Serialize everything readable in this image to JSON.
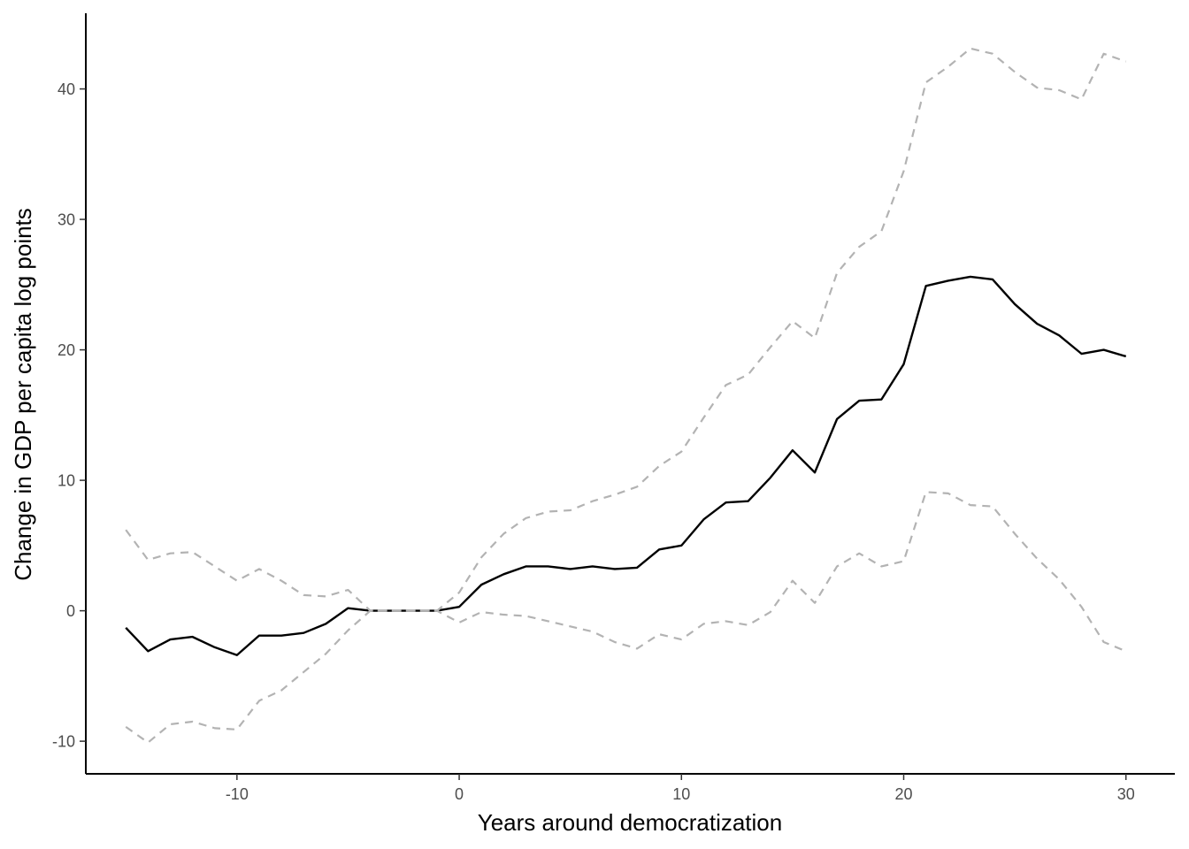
{
  "chart_data": {
    "type": "line",
    "title": "",
    "xlabel": "Years around democratization",
    "ylabel": "Change in GDP per capita log points",
    "xlim": [
      -16.8,
      32.2
    ],
    "ylim": [
      -12.5,
      45.8
    ],
    "grid": false,
    "legend": "none",
    "x_ticks": [
      -10,
      0,
      10,
      20,
      30
    ],
    "y_ticks": [
      -10,
      0,
      10,
      20,
      30,
      40
    ],
    "x_tick_labels": [
      "-10",
      "0",
      "10",
      "20",
      "30"
    ],
    "y_tick_labels": [
      "-10",
      "0",
      "10",
      "20",
      "30",
      "40"
    ],
    "x": [
      -15,
      -14,
      -13,
      -12,
      -11,
      -10,
      -9,
      -8,
      -7,
      -6,
      -5,
      -4,
      -3,
      -2,
      -1,
      0,
      1,
      2,
      3,
      4,
      5,
      6,
      7,
      8,
      9,
      10,
      11,
      12,
      13,
      14,
      15,
      16,
      17,
      18,
      19,
      20,
      21,
      22,
      23,
      24,
      25,
      26,
      27,
      28,
      29,
      30
    ],
    "series": [
      {
        "role": "estimate",
        "color": "#000000",
        "style": "solid",
        "values": [
          -1.3,
          -3.1,
          -2.2,
          -2.0,
          -2.8,
          -3.4,
          -1.9,
          -1.9,
          -1.7,
          -1.0,
          0.2,
          0.0,
          0.0,
          0.0,
          0.0,
          0.3,
          2.0,
          2.8,
          3.4,
          3.4,
          3.2,
          3.4,
          3.2,
          3.3,
          4.7,
          5.0,
          7.0,
          8.3,
          8.4,
          10.2,
          12.3,
          10.6,
          14.7,
          16.1,
          16.2,
          18.9,
          24.9,
          25.3,
          25.6,
          25.4,
          23.5,
          22.0,
          21.1,
          19.7,
          20.0,
          19.5
        ]
      },
      {
        "role": "upper-ci",
        "color": "#b3b3b3",
        "style": "dashed",
        "values": [
          6.2,
          3.9,
          4.4,
          4.5,
          3.4,
          2.3,
          3.2,
          2.3,
          1.2,
          1.1,
          1.6,
          0.0,
          0.0,
          0.0,
          0.0,
          1.4,
          4.1,
          5.9,
          7.1,
          7.6,
          7.7,
          8.4,
          8.9,
          9.5,
          11.1,
          12.2,
          14.8,
          17.3,
          18.1,
          20.2,
          22.2,
          20.9,
          25.9,
          27.9,
          29.1,
          33.7,
          40.5,
          41.7,
          43.1,
          42.7,
          41.3,
          40.1,
          39.9,
          39.2,
          42.7,
          42.1
        ]
      },
      {
        "role": "lower-ci",
        "color": "#b3b3b3",
        "style": "dashed",
        "values": [
          -8.9,
          -10.1,
          -8.7,
          -8.5,
          -9.0,
          -9.1,
          -6.9,
          -6.1,
          -4.7,
          -3.3,
          -1.5,
          0.0,
          0.0,
          0.0,
          0.0,
          -0.9,
          -0.1,
          -0.3,
          -0.4,
          -0.8,
          -1.2,
          -1.6,
          -2.4,
          -2.9,
          -1.8,
          -2.2,
          -1.0,
          -0.8,
          -1.1,
          -0.1,
          2.3,
          0.6,
          3.4,
          4.4,
          3.4,
          3.8,
          9.1,
          9.0,
          8.1,
          8.0,
          5.9,
          4.0,
          2.4,
          0.3,
          -2.4,
          -3.1
        ]
      }
    ]
  }
}
